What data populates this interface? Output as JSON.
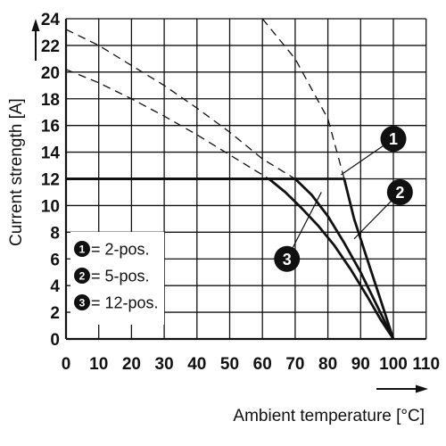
{
  "chart_data": {
    "type": "line",
    "xlabel": "Ambient temperature [°C]",
    "ylabel": "Current strength [A]",
    "xlim": [
      0,
      110
    ],
    "ylim": [
      0,
      24
    ],
    "xticks": [
      0,
      10,
      20,
      30,
      40,
      50,
      60,
      70,
      80,
      90,
      100,
      110
    ],
    "yticks": [
      0,
      2,
      4,
      6,
      8,
      10,
      12,
      14,
      16,
      18,
      20,
      22,
      24
    ],
    "grid": true,
    "legend_position": "bottom-left",
    "colors": {
      "line": "#111111",
      "grid": "#111111",
      "badge": "#111111"
    },
    "series": [
      {
        "name": "2-pos.",
        "marker": "1",
        "derating": [
          [
            0,
            12
          ],
          [
            85,
            12
          ],
          [
            88,
            9
          ],
          [
            92,
            6
          ],
          [
            96,
            3
          ],
          [
            100,
            0
          ]
        ],
        "maximum": [
          [
            60,
            24
          ],
          [
            70,
            21
          ],
          [
            80,
            16.5
          ],
          [
            85,
            12
          ]
        ]
      },
      {
        "name": "5-pos.",
        "marker": "2",
        "derating": [
          [
            0,
            12
          ],
          [
            70,
            12
          ],
          [
            75,
            10.8
          ],
          [
            80,
            9.2
          ],
          [
            85,
            7.2
          ],
          [
            90,
            5
          ],
          [
            95,
            2.5
          ],
          [
            100,
            0
          ]
        ],
        "maximum": [
          [
            0,
            23.2
          ],
          [
            10,
            22
          ],
          [
            20,
            20.5
          ],
          [
            30,
            19
          ],
          [
            40,
            17.3
          ],
          [
            50,
            15.5
          ],
          [
            60,
            13.5
          ],
          [
            70,
            12
          ]
        ]
      },
      {
        "name": "12-pos.",
        "marker": "3",
        "derating": [
          [
            0,
            12
          ],
          [
            62,
            12
          ],
          [
            67,
            11
          ],
          [
            72,
            9.8
          ],
          [
            77,
            8.5
          ],
          [
            82,
            7
          ],
          [
            87,
            5.2
          ],
          [
            92,
            3.2
          ],
          [
            96,
            1.5
          ],
          [
            100,
            0
          ]
        ],
        "maximum": [
          [
            0,
            20.2
          ],
          [
            10,
            19.2
          ],
          [
            20,
            18
          ],
          [
            30,
            16.7
          ],
          [
            40,
            15.3
          ],
          [
            50,
            13.8
          ],
          [
            62,
            12
          ]
        ]
      }
    ],
    "legend": [
      {
        "marker": "1",
        "label": "= 2-pos."
      },
      {
        "marker": "2",
        "label": "= 5-pos."
      },
      {
        "marker": "3",
        "label": "= 12-pos."
      }
    ],
    "callouts": [
      {
        "marker": "1",
        "at": [
          100,
          15
        ],
        "points_to": [
          84,
          12.3
        ]
      },
      {
        "marker": "2",
        "at": [
          102,
          11
        ],
        "points_to": [
          88,
          7.5
        ]
      },
      {
        "marker": "3",
        "at": [
          67.5,
          6
        ],
        "points_to": [
          78,
          11
        ]
      }
    ]
  }
}
